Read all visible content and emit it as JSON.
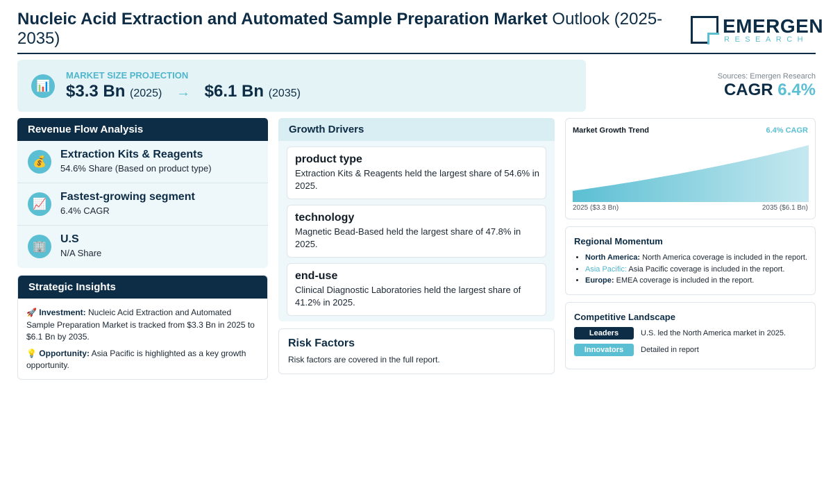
{
  "header": {
    "title_bold": "Nucleic Acid Extraction and Automated Sample Preparation Market",
    "title_light": "Outlook (2025-2035)",
    "logo_name": "EMERGEN",
    "logo_sub": "RESEARCH"
  },
  "projection": {
    "icon": "bar-chart-icon",
    "label": "MARKET SIZE PROJECTION",
    "start_value": "$3.3 Bn",
    "start_year": "(2025)",
    "arrow": "→",
    "end_value": "$6.1 Bn",
    "end_year": "(2035)"
  },
  "sources": "Sources: Emergen Research",
  "cagr": {
    "label": "CAGR",
    "value": "6.4%"
  },
  "revenue_flow": {
    "title": "Revenue Flow Analysis",
    "items": [
      {
        "icon": "money-bag-icon",
        "title": "Extraction Kits & Reagents",
        "subtitle": "54.6% Share (Based on product type)"
      },
      {
        "icon": "trend-up-icon",
        "title": "Fastest-growing segment",
        "subtitle": "6.4% CAGR"
      },
      {
        "icon": "office-building-icon",
        "title": "U.S",
        "subtitle": "N/A Share"
      }
    ]
  },
  "strategic_insights": {
    "title": "Strategic Insights",
    "investment_label": "Investment:",
    "investment_text": "Nucleic Acid Extraction and Automated Sample Preparation Market is tracked from $3.3 Bn in 2025 to $6.1 Bn by 2035.",
    "opportunity_label": "Opportunity:",
    "opportunity_text": "Asia Pacific is highlighted as a key growth opportunity."
  },
  "growth_drivers": {
    "title": "Growth Drivers",
    "items": [
      {
        "title": "product type",
        "text": "Extraction Kits & Reagents held the largest share of 54.6% in 2025."
      },
      {
        "title": "technology",
        "text": "Magnetic Bead-Based held the largest share of 47.8% in 2025."
      },
      {
        "title": "end-use",
        "text": "Clinical Diagnostic Laboratories held the largest share of 41.2% in 2025."
      }
    ]
  },
  "risk_factors": {
    "title": "Risk Factors",
    "text": "Risk factors are covered in the full report."
  },
  "growth_trend": {
    "title": "Market Growth Trend",
    "cagr_label": "6.4% CAGR",
    "start_label": "2025 ($3.3 Bn)",
    "end_label": "2035 ($6.1 Bn)",
    "accent_color": "#5bbfd3"
  },
  "chart_data": {
    "type": "area",
    "title": "Market Growth Trend",
    "x": [
      2025,
      2035
    ],
    "values": [
      3.3,
      6.1
    ],
    "xlabel": "",
    "ylabel": ""
  },
  "regional_momentum": {
    "title": "Regional Momentum",
    "items": [
      {
        "region": "North America:",
        "text": "North America coverage is included in the report."
      },
      {
        "region": "Asia Pacific:",
        "text": "Asia Pacific coverage is included in the report."
      },
      {
        "region": "Europe:",
        "text": "EMEA coverage is included in the report."
      }
    ]
  },
  "competitive_landscape": {
    "title": "Competitive Landscape",
    "rows": [
      {
        "badge": "Leaders",
        "badge_color": "#0d2c45",
        "text": "U.S. led the North America market in 2025."
      },
      {
        "badge": "Innovators",
        "badge_color": "#5bbfd3",
        "text": "Detailed in report"
      }
    ]
  }
}
